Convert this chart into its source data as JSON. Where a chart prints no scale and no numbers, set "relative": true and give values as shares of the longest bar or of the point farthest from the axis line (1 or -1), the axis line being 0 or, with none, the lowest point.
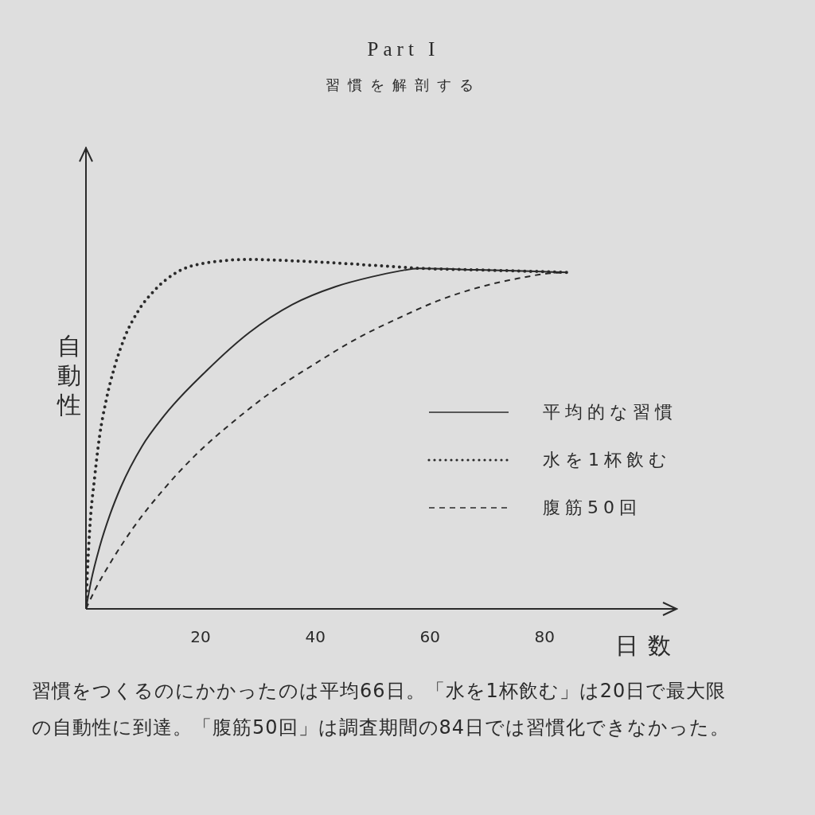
{
  "chart_data": {
    "type": "line",
    "title": "Part I",
    "subtitle": "習慣を解剖する",
    "xlabel": "日数",
    "ylabel": "自動性",
    "annotations": [
      "習慣をつくるのにかかったのは平均66日。「水を1杯飲む」は20日で最大限の自動性に到達。「腹筋50回」は調査期間の84日では習慣化できなかった。"
    ],
    "relative": true,
    "xlim": [
      0,
      103
    ],
    "xticks": [
      20,
      40,
      60,
      80
    ],
    "legend": "right",
    "series": [
      {
        "name": "平均的な習慣",
        "color": "#2a2a2a",
        "line_style": "solid",
        "x": [
          0,
          0.9,
          2.4,
          4.2,
          6.1,
          9.8,
          13.6,
          21,
          28.5,
          36,
          43.5,
          49.8,
          54.4,
          58.1,
          68.3,
          77.5,
          84
        ],
        "values": [
          0,
          0.08,
          0.178,
          0.27,
          0.349,
          0.466,
          0.552,
          0.681,
          0.791,
          0.871,
          0.922,
          0.95,
          0.966,
          0.974,
          0.97,
          0.966,
          0.963
        ]
      },
      {
        "name": "水を1杯飲む",
        "color": "#2a2a2a",
        "line_style": "dotted",
        "x": [
          0,
          0.25,
          0.7,
          1.5,
          2.4,
          3.5,
          5,
          6.8,
          9.1,
          12.1,
          15.8,
          21,
          28.5,
          36,
          43.5,
          51,
          59,
          68.3,
          77.5,
          84
        ],
        "values": [
          0,
          0.104,
          0.239,
          0.374,
          0.497,
          0.595,
          0.693,
          0.779,
          0.852,
          0.914,
          0.963,
          0.99,
          1,
          0.996,
          0.99,
          0.982,
          0.974,
          0.97,
          0.966,
          0.963
        ]
      },
      {
        "name": "腹筋50回",
        "color": "#2a2a2a",
        "line_style": "dashed",
        "x": [
          0,
          1.6,
          4.6,
          8.3,
          13.6,
          19.6,
          25.5,
          32.3,
          39.7,
          47.2,
          54.4,
          61.3,
          68.3,
          75.2,
          81.3,
          84
        ],
        "values": [
          0,
          0.055,
          0.141,
          0.233,
          0.343,
          0.448,
          0.533,
          0.62,
          0.699,
          0.773,
          0.831,
          0.881,
          0.919,
          0.945,
          0.961,
          0.963
        ]
      }
    ]
  }
}
